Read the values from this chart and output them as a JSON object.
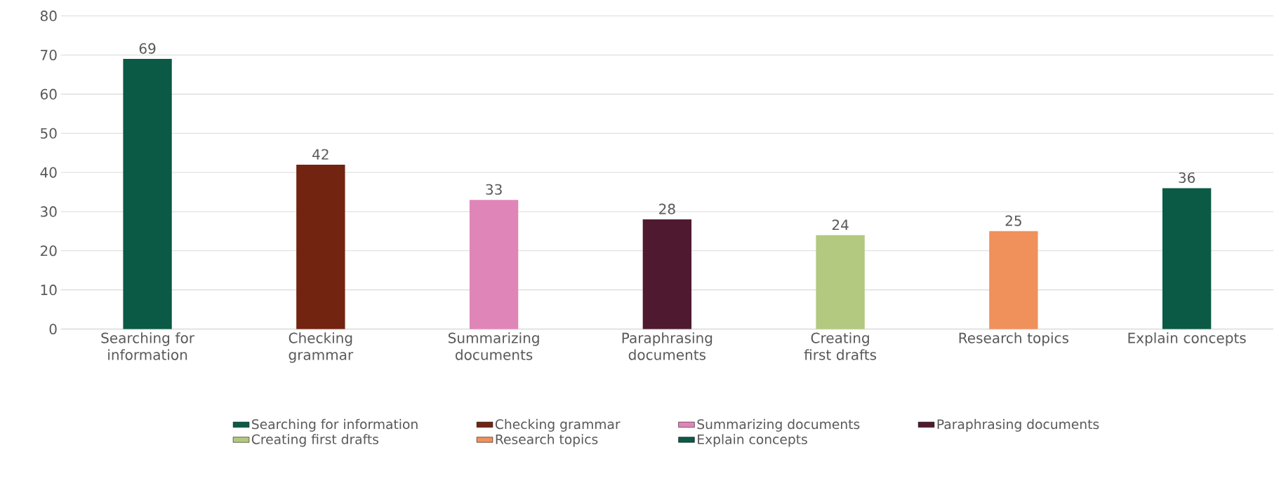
{
  "chart_data": {
    "type": "bar",
    "categories": [
      "Searching for information",
      "Checking grammar",
      "Summarizing documents",
      "Paraphrasing documents",
      "Creating first drafts",
      "Research topics",
      "Explain concepts"
    ],
    "series": [
      {
        "name": "Searching for information",
        "color": "#0b5a45",
        "values": [
          69,
          null,
          null,
          null,
          null,
          null,
          null
        ]
      },
      {
        "name": "Checking grammar",
        "color": "#722410",
        "values": [
          null,
          42,
          null,
          null,
          null,
          null,
          null
        ]
      },
      {
        "name": "Summarizing documents",
        "color": "#e085b8",
        "values": [
          null,
          null,
          33,
          null,
          null,
          null,
          null
        ]
      },
      {
        "name": "Paraphrasing documents",
        "color": "#4f1a30",
        "values": [
          null,
          null,
          null,
          28,
          null,
          null,
          null
        ]
      },
      {
        "name": "Creating first drafts",
        "color": "#b3c97f",
        "values": [
          null,
          null,
          null,
          null,
          24,
          null,
          null
        ]
      },
      {
        "name": "Research topics",
        "color": "#f0905a",
        "values": [
          null,
          null,
          null,
          null,
          null,
          25,
          null
        ]
      },
      {
        "name": "Explain concepts",
        "color": "#0b5a45",
        "values": [
          null,
          null,
          null,
          null,
          null,
          null,
          36
        ]
      }
    ],
    "ylim": [
      0,
      80
    ],
    "yticks": [
      0,
      10,
      20,
      30,
      40,
      50,
      60,
      70,
      80
    ],
    "grid": "y",
    "legend": "bottom",
    "data_labels": true
  }
}
